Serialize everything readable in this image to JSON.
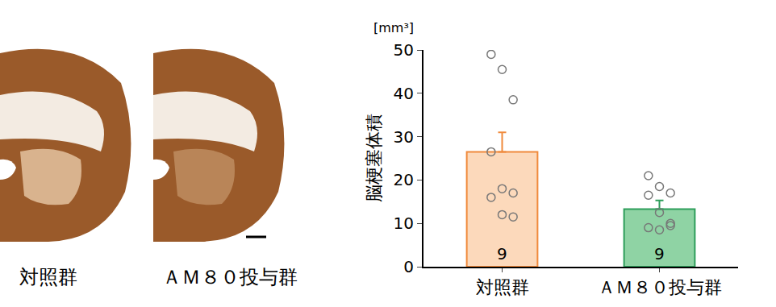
{
  "chart_data": {
    "type": "bar",
    "categories": [
      "対照群",
      "ＡＭ８０投与群"
    ],
    "values": [
      26.5,
      13.3
    ],
    "errors": [
      4.5,
      2.0
    ],
    "n": [
      9,
      9
    ],
    "points": [
      [
        49,
        45.5,
        38.5,
        26.5,
        18,
        17,
        16,
        12,
        11.5
      ],
      [
        21,
        18.5,
        17,
        16.5,
        12.5,
        10,
        9,
        8.5,
        9.5
      ]
    ],
    "colors": [
      "#fcd9bb",
      "#8fd3a4"
    ],
    "ylabel": "脳梗塞体積",
    "unit": "[mm³]",
    "ylim": [
      0,
      50
    ],
    "yticks": [
      0,
      10,
      20,
      30,
      40,
      50
    ],
    "grid": false
  },
  "images": {
    "labels": [
      "対照群",
      "ＡＭ８０投与群"
    ]
  }
}
